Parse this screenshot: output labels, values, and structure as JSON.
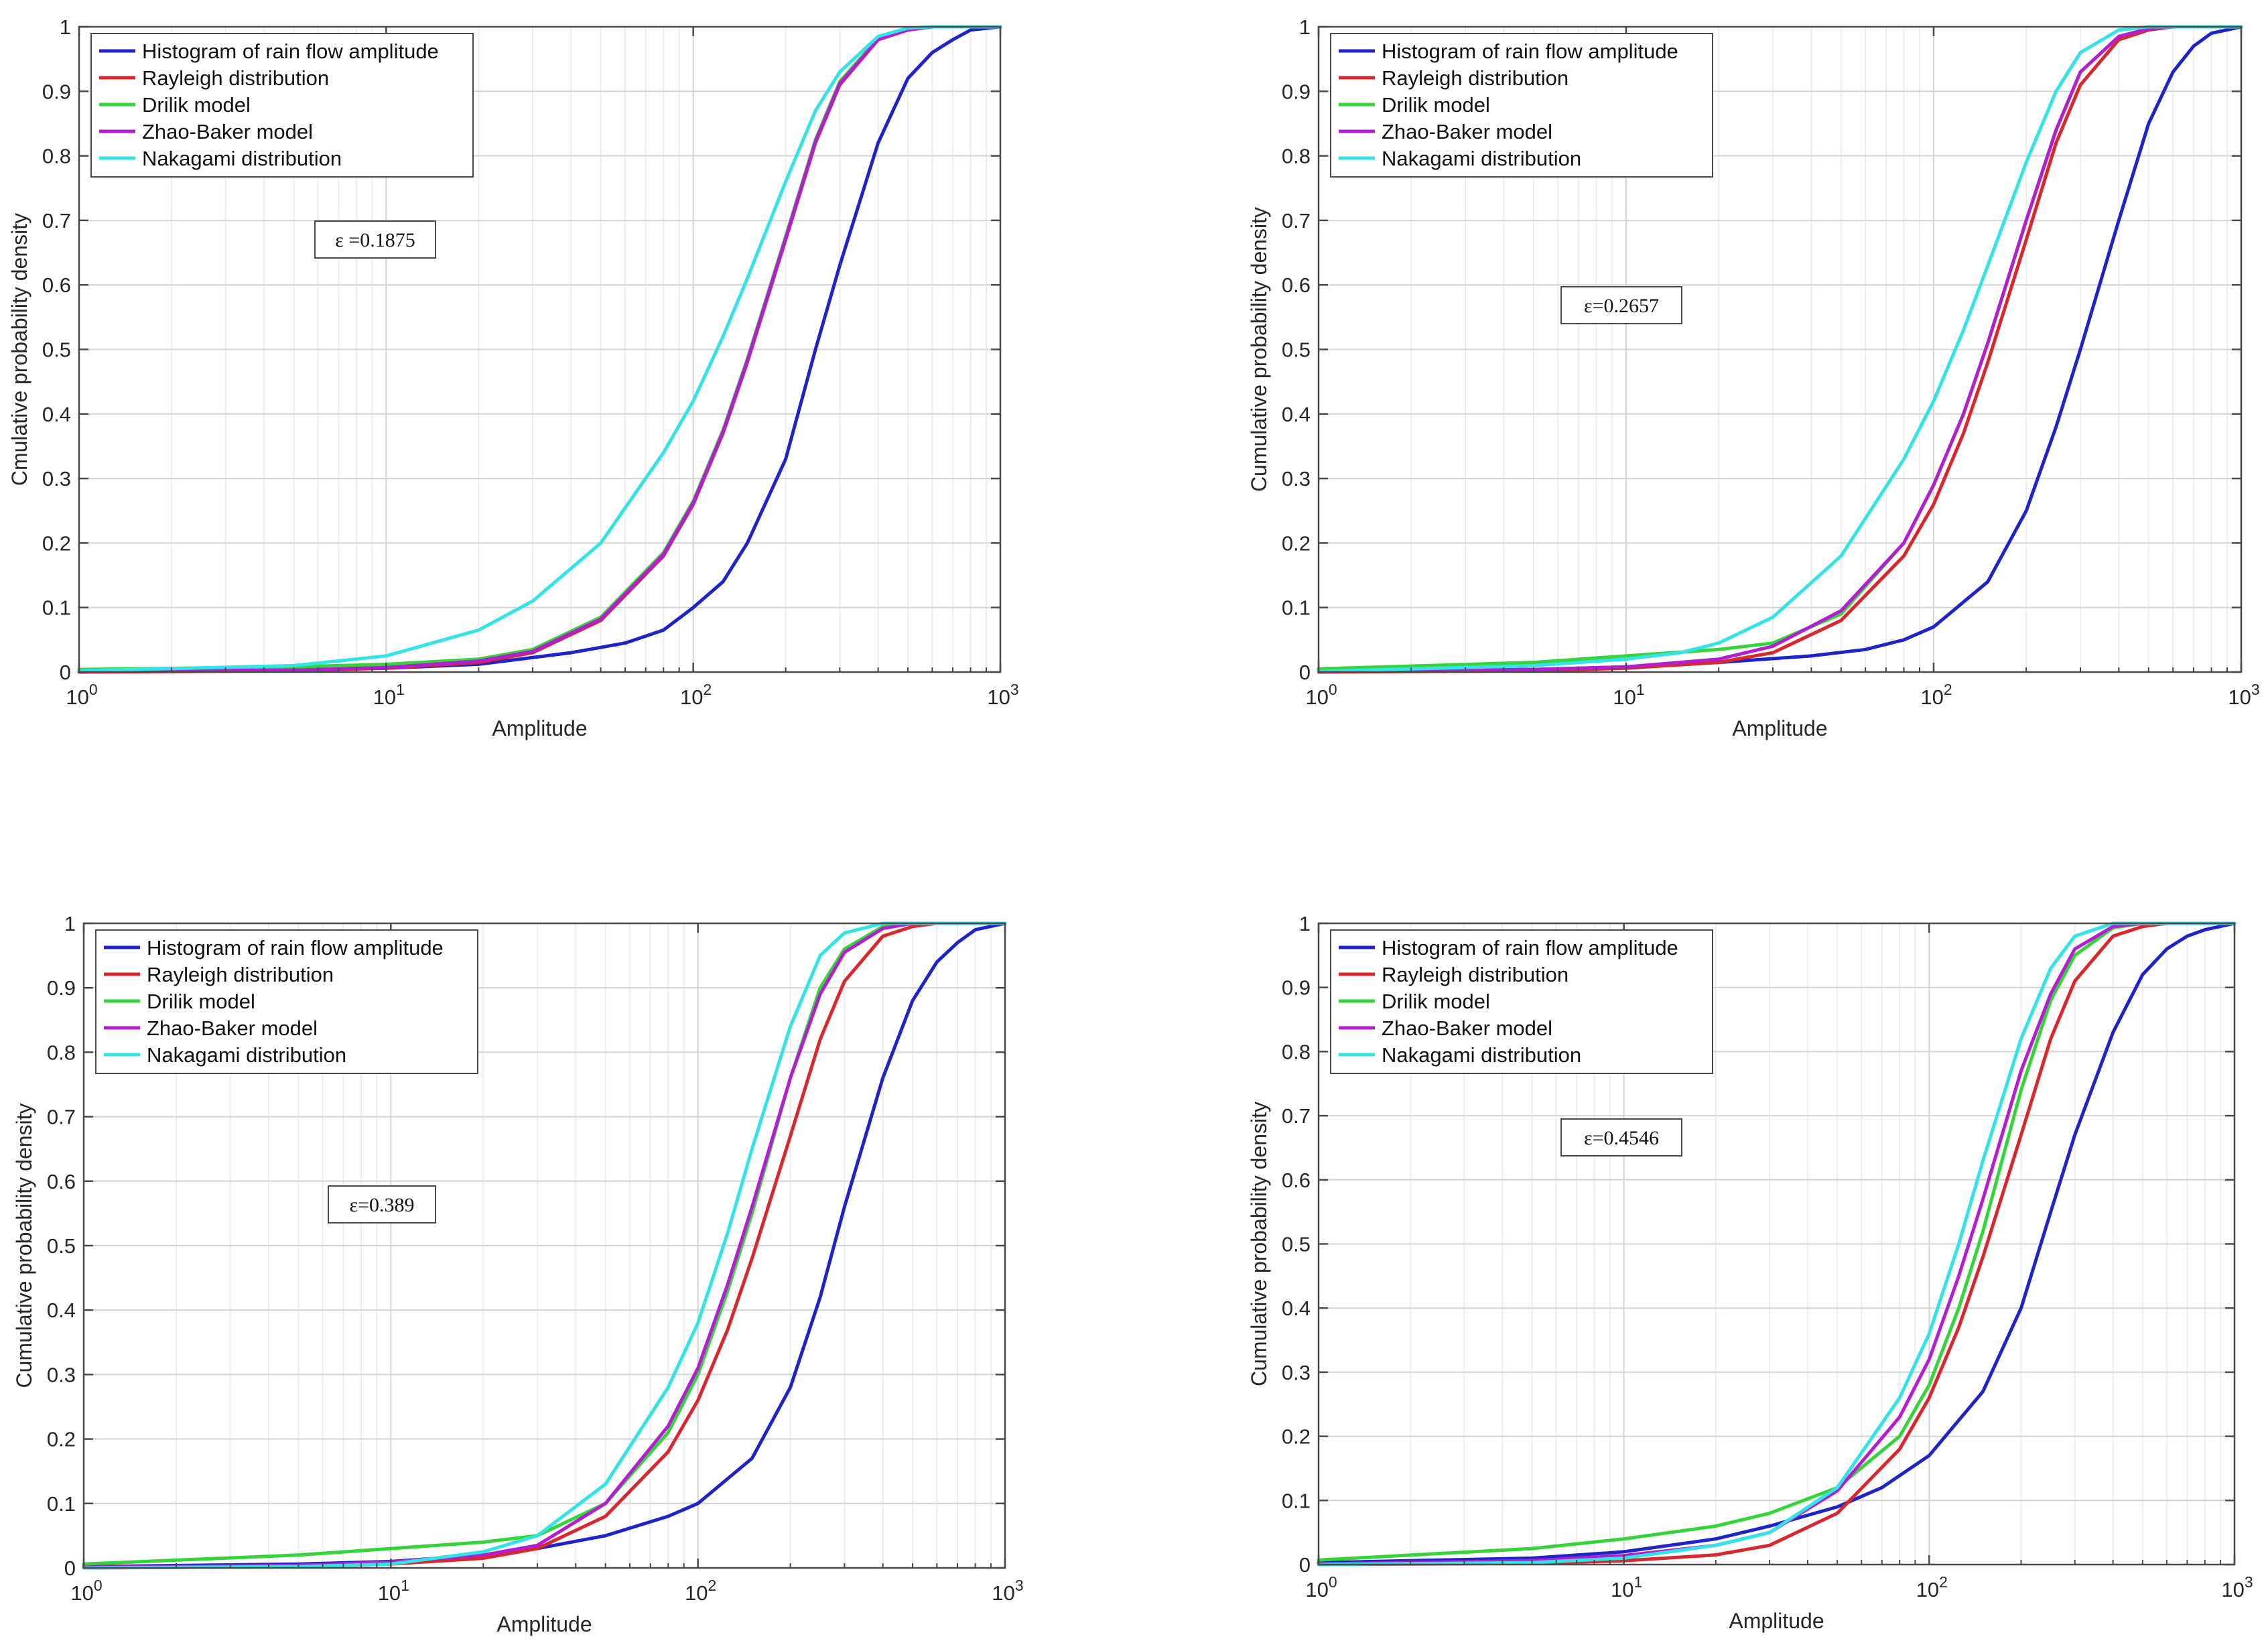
{
  "series_names": [
    "Histogram of rain flow amplitude",
    "Rayleigh distribution",
    "Drilik model",
    "Zhao-Baker model",
    "Nakagami distribution"
  ],
  "series_colors": [
    "#1f23c8",
    "#d9272e",
    "#35d43a",
    "#b31fd0",
    "#33e3e6"
  ],
  "x_tick_labels": [
    "1",
    "1",
    "1",
    "1"
  ],
  "x_tick_exponents": [
    "0",
    "1",
    "2",
    "3"
  ],
  "y_tick_labels": [
    "0",
    "0.1",
    "0.2",
    "0.3",
    "0.4",
    "0.5",
    "0.6",
    "0.7",
    "0.8",
    "0.9",
    "1"
  ],
  "chart_data": [
    {
      "type": "line",
      "xscale": "log",
      "xlim": [
        1,
        1000
      ],
      "ylim": [
        0,
        1
      ],
      "grid": true,
      "xlabel": "Amplitude",
      "ylabel": "Cmulative probability density",
      "annotation": "ε =0.1875",
      "legend": "top-left",
      "series": [
        {
          "name": "Histogram of rain flow amplitude",
          "x": [
            1,
            5,
            10,
            20,
            40,
            60,
            80,
            100,
            125,
            150,
            200,
            250,
            300,
            400,
            500,
            600,
            700,
            800,
            1000
          ],
          "y": [
            0.001,
            0.003,
            0.006,
            0.012,
            0.03,
            0.045,
            0.065,
            0.1,
            0.14,
            0.2,
            0.33,
            0.5,
            0.63,
            0.82,
            0.92,
            0.96,
            0.98,
            0.995,
            1
          ]
        },
        {
          "name": "Rayleigh distribution",
          "x": [
            1,
            5,
            10,
            20,
            30,
            50,
            80,
            100,
            125,
            150,
            200,
            250,
            300,
            400,
            500,
            600,
            800,
            1000
          ],
          "y": [
            0.0,
            0.002,
            0.006,
            0.015,
            0.03,
            0.08,
            0.18,
            0.26,
            0.37,
            0.48,
            0.67,
            0.82,
            0.91,
            0.98,
            0.995,
            1,
            1,
            1
          ]
        },
        {
          "name": "Drilik model",
          "x": [
            1,
            5,
            10,
            20,
            30,
            50,
            80,
            100,
            125,
            150,
            200,
            250,
            300,
            400,
            500,
            600,
            800,
            1000
          ],
          "y": [
            0.004,
            0.008,
            0.012,
            0.02,
            0.035,
            0.085,
            0.185,
            0.265,
            0.375,
            0.485,
            0.675,
            0.825,
            0.915,
            0.982,
            0.996,
            1,
            1,
            1
          ]
        },
        {
          "name": "Zhao-Baker model",
          "x": [
            1,
            5,
            10,
            20,
            30,
            50,
            80,
            100,
            125,
            150,
            200,
            250,
            300,
            400,
            500,
            600,
            800,
            1000
          ],
          "y": [
            0.001,
            0.003,
            0.007,
            0.017,
            0.032,
            0.082,
            0.182,
            0.262,
            0.372,
            0.482,
            0.672,
            0.822,
            0.912,
            0.98,
            0.995,
            1,
            1,
            1
          ]
        },
        {
          "name": "Nakagami distribution",
          "x": [
            1,
            5,
            10,
            20,
            30,
            50,
            80,
            100,
            125,
            150,
            200,
            250,
            300,
            400,
            500,
            600,
            800,
            1000
          ],
          "y": [
            0.002,
            0.01,
            0.025,
            0.065,
            0.11,
            0.2,
            0.34,
            0.42,
            0.52,
            0.61,
            0.76,
            0.87,
            0.93,
            0.985,
            0.998,
            1,
            1,
            1
          ]
        }
      ]
    },
    {
      "type": "line",
      "xscale": "log",
      "xlim": [
        1,
        1000
      ],
      "ylim": [
        0,
        1
      ],
      "grid": true,
      "xlabel": "Amplitude",
      "ylabel": "Cumulative probability density",
      "annotation": "ε=0.2657",
      "legend": "top-left",
      "series": [
        {
          "name": "Histogram of rain flow amplitude",
          "x": [
            1,
            5,
            10,
            20,
            40,
            60,
            80,
            100,
            150,
            200,
            250,
            300,
            400,
            500,
            600,
            700,
            800,
            1000
          ],
          "y": [
            0.001,
            0.004,
            0.008,
            0.015,
            0.025,
            0.035,
            0.05,
            0.07,
            0.14,
            0.25,
            0.38,
            0.5,
            0.7,
            0.85,
            0.93,
            0.97,
            0.99,
            1
          ]
        },
        {
          "name": "Rayleigh distribution",
          "x": [
            1,
            5,
            10,
            20,
            30,
            50,
            80,
            100,
            125,
            150,
            200,
            250,
            300,
            400,
            500,
            600,
            800,
            1000
          ],
          "y": [
            0.0,
            0.002,
            0.006,
            0.015,
            0.03,
            0.08,
            0.18,
            0.26,
            0.37,
            0.48,
            0.67,
            0.82,
            0.91,
            0.98,
            0.995,
            1,
            1,
            1
          ]
        },
        {
          "name": "Drilik model",
          "x": [
            1,
            5,
            10,
            20,
            30,
            50,
            80,
            100,
            125,
            150,
            200,
            250,
            300,
            400,
            500,
            600,
            800,
            1000
          ],
          "y": [
            0.005,
            0.015,
            0.025,
            0.035,
            0.045,
            0.09,
            0.2,
            0.29,
            0.4,
            0.51,
            0.7,
            0.84,
            0.93,
            0.985,
            0.997,
            1,
            1,
            1
          ]
        },
        {
          "name": "Zhao-Baker model",
          "x": [
            1,
            5,
            10,
            20,
            30,
            50,
            80,
            100,
            125,
            150,
            200,
            250,
            300,
            400,
            500,
            600,
            800,
            1000
          ],
          "y": [
            0.001,
            0.004,
            0.008,
            0.02,
            0.04,
            0.095,
            0.2,
            0.29,
            0.4,
            0.51,
            0.7,
            0.84,
            0.93,
            0.985,
            0.997,
            1,
            1,
            1
          ]
        },
        {
          "name": "Nakagami distribution",
          "x": [
            1,
            5,
            10,
            15,
            20,
            30,
            50,
            80,
            100,
            125,
            150,
            200,
            250,
            300,
            400,
            500,
            600,
            800,
            1000
          ],
          "y": [
            0.001,
            0.01,
            0.02,
            0.03,
            0.045,
            0.085,
            0.18,
            0.33,
            0.42,
            0.53,
            0.63,
            0.79,
            0.9,
            0.96,
            0.995,
            1,
            1,
            1,
            1
          ]
        }
      ]
    },
    {
      "type": "line",
      "xscale": "log",
      "xlim": [
        1,
        1000
      ],
      "ylim": [
        0,
        1
      ],
      "grid": true,
      "xlabel": "Amplitude",
      "ylabel": "Cumulative probability density",
      "annotation": "ε=0.389",
      "legend": "top-left",
      "series": [
        {
          "name": "Histogram of rain flow amplitude",
          "x": [
            1,
            5,
            10,
            20,
            30,
            50,
            80,
            100,
            150,
            200,
            250,
            300,
            400,
            500,
            600,
            700,
            800,
            1000
          ],
          "y": [
            0.002,
            0.006,
            0.01,
            0.02,
            0.03,
            0.05,
            0.08,
            0.1,
            0.17,
            0.28,
            0.42,
            0.56,
            0.76,
            0.88,
            0.94,
            0.97,
            0.99,
            1
          ]
        },
        {
          "name": "Rayleigh distribution",
          "x": [
            1,
            5,
            10,
            20,
            30,
            50,
            80,
            100,
            125,
            150,
            200,
            250,
            300,
            400,
            500,
            600,
            800,
            1000
          ],
          "y": [
            0.0,
            0.002,
            0.006,
            0.015,
            0.03,
            0.08,
            0.18,
            0.26,
            0.37,
            0.48,
            0.67,
            0.82,
            0.91,
            0.98,
            0.995,
            1,
            1,
            1
          ]
        },
        {
          "name": "Drilik model",
          "x": [
            1,
            5,
            10,
            20,
            30,
            50,
            80,
            100,
            125,
            150,
            200,
            250,
            300,
            400,
            500,
            600,
            800,
            1000
          ],
          "y": [
            0.006,
            0.02,
            0.03,
            0.04,
            0.05,
            0.1,
            0.21,
            0.3,
            0.43,
            0.55,
            0.76,
            0.9,
            0.96,
            0.995,
            1,
            1,
            1,
            1
          ]
        },
        {
          "name": "Zhao-Baker model",
          "x": [
            1,
            5,
            10,
            20,
            30,
            50,
            80,
            100,
            125,
            150,
            200,
            250,
            300,
            400,
            500,
            600,
            800,
            1000
          ],
          "y": [
            0.001,
            0.004,
            0.009,
            0.02,
            0.035,
            0.1,
            0.22,
            0.31,
            0.44,
            0.56,
            0.76,
            0.89,
            0.955,
            0.992,
            1,
            1,
            1,
            1
          ]
        },
        {
          "name": "Nakagami distribution",
          "x": [
            1,
            5,
            10,
            20,
            30,
            50,
            80,
            100,
            125,
            150,
            200,
            250,
            300,
            400,
            500,
            600,
            800,
            1000
          ],
          "y": [
            0.0,
            0.002,
            0.006,
            0.025,
            0.05,
            0.13,
            0.28,
            0.38,
            0.52,
            0.65,
            0.84,
            0.95,
            0.985,
            1,
            1,
            1,
            1,
            1
          ]
        }
      ]
    },
    {
      "type": "line",
      "xscale": "log",
      "xlim": [
        1,
        1000
      ],
      "ylim": [
        0,
        1
      ],
      "grid": true,
      "xlabel": "Amplitude",
      "ylabel": "Cumulative probability density",
      "annotation": "ε=0.4546",
      "legend": "top-left",
      "series": [
        {
          "name": "Histogram of rain flow amplitude",
          "x": [
            1,
            5,
            10,
            20,
            30,
            50,
            70,
            100,
            150,
            200,
            250,
            300,
            400,
            500,
            600,
            700,
            800,
            1000
          ],
          "y": [
            0.003,
            0.01,
            0.02,
            0.04,
            0.06,
            0.09,
            0.12,
            0.17,
            0.27,
            0.4,
            0.55,
            0.67,
            0.83,
            0.92,
            0.96,
            0.98,
            0.99,
            1
          ]
        },
        {
          "name": "Rayleigh distribution",
          "x": [
            1,
            5,
            10,
            20,
            30,
            50,
            80,
            100,
            125,
            150,
            200,
            250,
            300,
            400,
            500,
            600,
            800,
            1000
          ],
          "y": [
            0.0,
            0.002,
            0.006,
            0.015,
            0.03,
            0.08,
            0.18,
            0.26,
            0.37,
            0.48,
            0.67,
            0.82,
            0.91,
            0.98,
            0.995,
            1,
            1,
            1
          ]
        },
        {
          "name": "Drilik model",
          "x": [
            1,
            5,
            10,
            20,
            30,
            50,
            80,
            100,
            125,
            150,
            200,
            250,
            300,
            400,
            500,
            600,
            800,
            1000
          ],
          "y": [
            0.007,
            0.025,
            0.04,
            0.06,
            0.08,
            0.12,
            0.2,
            0.28,
            0.4,
            0.52,
            0.74,
            0.88,
            0.95,
            0.993,
            1,
            1,
            1,
            1
          ]
        },
        {
          "name": "Zhao-Baker model",
          "x": [
            1,
            5,
            10,
            20,
            30,
            50,
            80,
            100,
            125,
            150,
            200,
            250,
            300,
            400,
            500,
            600,
            800,
            1000
          ],
          "y": [
            0.001,
            0.006,
            0.014,
            0.03,
            0.05,
            0.115,
            0.23,
            0.32,
            0.45,
            0.57,
            0.77,
            0.89,
            0.96,
            0.995,
            1,
            1,
            1,
            1
          ]
        },
        {
          "name": "Nakagami distribution",
          "x": [
            1,
            5,
            10,
            20,
            30,
            50,
            80,
            100,
            125,
            150,
            200,
            250,
            300,
            400,
            500,
            600,
            800,
            1000
          ],
          "y": [
            0.0,
            0.003,
            0.01,
            0.03,
            0.05,
            0.12,
            0.26,
            0.36,
            0.5,
            0.63,
            0.82,
            0.93,
            0.98,
            1,
            1,
            1,
            1,
            1
          ]
        }
      ]
    }
  ]
}
